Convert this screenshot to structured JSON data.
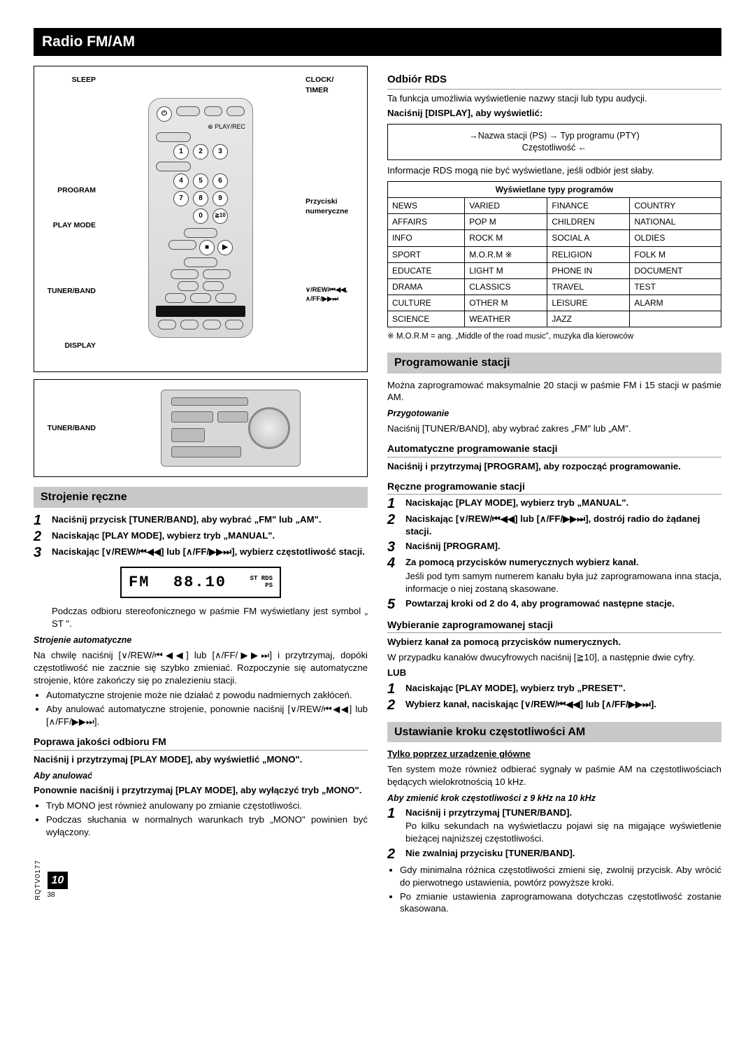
{
  "page_title": "Radio FM/AM",
  "remote": {
    "labels_left": [
      "SLEEP",
      "PROGRAM",
      "PLAY MODE",
      "TUNER/BAND",
      "DISPLAY"
    ],
    "labels_right_top": "CLOCK/\nTIMER",
    "labels_right_playrec": "⊕ PLAY/REC",
    "labels_right_num": "Przyciski\nnumeryczne",
    "labels_right_rew": "∨/REW/⏮◀◀,\n∧/FF/▶▶⏭",
    "num_buttons": [
      "1",
      "2",
      "3",
      "4",
      "5",
      "6",
      "7",
      "8",
      "9",
      "0",
      "≧10"
    ]
  },
  "unit": {
    "label_left": "TUNER/BAND"
  },
  "strojenie": {
    "head": "Strojenie ręczne",
    "steps": [
      "Naciśnij przycisk [TUNER/BAND], aby wybrać „FM\" lub „AM\".",
      "Naciskając [PLAY MODE], wybierz tryb „MANUAL\".",
      "Naciskając [∨/REW/⏮◀◀] lub [∧/FF/▶▶⏭], wybierz częstotliwość stacji."
    ],
    "lcd_left": "FM",
    "lcd_freq": "88.10",
    "lcd_right": "ST RDS\nPS",
    "para1": "Podczas odbioru stereofonicznego w paśmie FM wyświetlany jest symbol „ ST \".",
    "auto_head": "Strojenie automatyczne",
    "auto_para": "Na chwilę naciśnij [∨/REW/⏮◀◀] lub [∧/FF/▶▶⏭] i przytrzymaj, dopóki częstotliwość nie zacznie się szybko zmieniać. Rozpoczynie się automatyczne strojenie, które zakończy się po znalezieniu stacji.",
    "auto_bullets": [
      "Automatyczne strojenie może nie działać z powodu nadmiernych zakłóceń.",
      "Aby anulować automatyczne strojenie, ponownie naciśnij [∨/REW/⏮◀◀] lub [∧/FF/▶▶⏭]."
    ],
    "fm_head": "Poprawa jakości odbioru FM",
    "fm_bold": "Naciśnij i przytrzymaj [PLAY MODE], aby wyświetlić „MONO\".",
    "fm_cancel_head": "Aby anulować",
    "fm_cancel_text": "Ponownie naciśnij i przytrzymaj [PLAY MODE], aby wyłączyć tryb „MONO\".",
    "fm_bullets": [
      "Tryb MONO jest również anulowany po zmianie częstotliwości.",
      "Podczas słuchania w normalnych warunkach tryb „MONO\" powinien być wyłączony."
    ]
  },
  "rds": {
    "head": "Odbiór RDS",
    "para1": "Ta funkcja umożliwia wyświetlenie nazwy stacji lub typu audycji.",
    "display_bold": "Naciśnij [DISPLAY], aby wyświetlić:",
    "flow": "→Nazwa stacji (PS) → Typ programu (PTY)\nCzęstotliwość ←",
    "para2": "Informacje RDS mogą nie być wyświetlane, jeśli odbiór jest słaby.",
    "table_head": "Wyświetlane typy programów",
    "table": [
      [
        "NEWS",
        "VARIED",
        "FINANCE",
        "COUNTRY"
      ],
      [
        "AFFAIRS",
        "POP M",
        "CHILDREN",
        "NATIONAL"
      ],
      [
        "INFO",
        "ROCK M",
        "SOCIAL A",
        "OLDIES"
      ],
      [
        "SPORT",
        "M.O.R.M ※",
        "RELIGION",
        "FOLK M"
      ],
      [
        "EDUCATE",
        "LIGHT M",
        "PHONE IN",
        "DOCUMENT"
      ],
      [
        "DRAMA",
        "CLASSICS",
        "TRAVEL",
        "TEST"
      ],
      [
        "CULTURE",
        "OTHER M",
        "LEISURE",
        "ALARM"
      ],
      [
        "SCIENCE",
        "WEATHER",
        "JAZZ",
        ""
      ]
    ],
    "footnote": "※ M.O.R.M = ang. „Middle of the road music\", muzyka dla kierowców"
  },
  "prog": {
    "head": "Programowanie stacji",
    "para1": "Można zaprogramować maksymalnie 20 stacji w paśmie FM i 15 stacji w paśmie AM.",
    "prep_head": "Przygotowanie",
    "prep_text": "Naciśnij [TUNER/BAND], aby wybrać zakres „FM\" lub „AM\".",
    "auto_head": "Automatyczne programowanie stacji",
    "auto_bold": "Naciśnij i przytrzymaj [PROGRAM], aby rozpocząć programowanie.",
    "manual_head": "Ręczne programowanie stacji",
    "manual_steps": [
      {
        "b": "Naciskając [PLAY MODE], wybierz tryb „MANUAL\"."
      },
      {
        "b": "Naciskając [∨/REW/⏮◀◀] lub [∧/FF/▶▶⏭], dostrój radio do żądanej stacji."
      },
      {
        "b": "Naciśnij [PROGRAM]."
      },
      {
        "b": "Za pomocą przycisków numerycznych wybierz kanał.",
        "p": "Jeśli pod tym samym numerem kanału była już zaprogramowana inna stacja, informacje o niej zostaną skasowane."
      },
      {
        "b": "Powtarzaj kroki od 2 do 4, aby programować następne stacje."
      }
    ],
    "select_head": "Wybieranie zaprogramowanej stacji",
    "select_bold": "Wybierz kanał za pomocą przycisków numerycznych.",
    "select_para": "W przypadku kanałów dwucyfrowych naciśnij [≧10], a następnie dwie cyfry.",
    "lub": "LUB",
    "select_steps": [
      "Naciskając [PLAY MODE], wybierz tryb „PRESET\".",
      "Wybierz kanał, naciskając [∨/REW/⏮◀◀] lub [∧/FF/▶▶⏭]."
    ]
  },
  "am": {
    "head": "Ustawianie kroku częstotliwości AM",
    "underline": "Tylko poprzez urządzenie główne",
    "para1": "Ten system może również odbierać sygnały w paśmie AM na częstotliwościach będących wielokrotnością 10 kHz.",
    "ital": "Aby zmienić krok częstotliwości z 9 kHz na 10 kHz",
    "steps": [
      {
        "b": "Naciśnij i przytrzymaj [TUNER/BAND].",
        "p": "Po kilku sekundach na wyświetlaczu pojawi się na migające wyświetlenie bieżącej najniższej częstotliwości."
      },
      {
        "b": "Nie zwalniaj przycisku [TUNER/BAND]."
      }
    ],
    "bullets": [
      "Gdy minimalna różnica częstotliwości zmieni się, zwolnij przycisk. Aby wrócić do pierwotnego ustawienia, powtórz powyższe kroki.",
      "Po zmianie ustawienia zaprogramowana dotychczas częstotliwość zostanie skasowana."
    ]
  },
  "footer": {
    "code": "RQTV0177",
    "big": "10",
    "small": "38"
  }
}
